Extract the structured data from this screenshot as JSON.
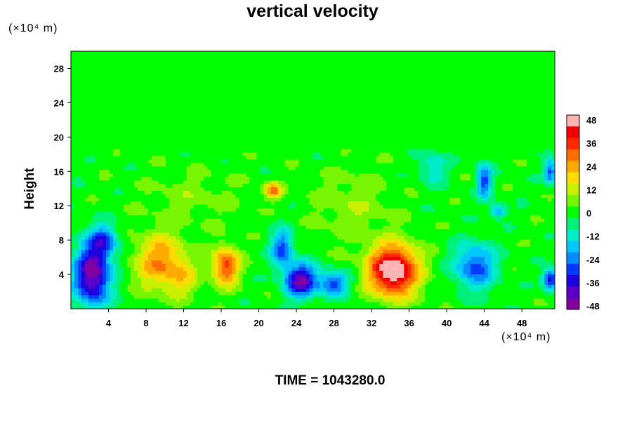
{
  "chart_data": {
    "type": "heatmap",
    "title": "vertical velocity",
    "ylabel": "Height",
    "y_unit": "(×10⁴ m)",
    "x_unit": "(×10⁴ m)",
    "xlim": [
      0,
      51.5
    ],
    "ylim": [
      0,
      30
    ],
    "x_ticks": [
      "4",
      "8",
      "12",
      "16",
      "20",
      "24",
      "28",
      "32",
      "36",
      "40",
      "44",
      "48"
    ],
    "y_ticks": [
      "4",
      "8",
      "12",
      "16",
      "20",
      "24",
      "28"
    ],
    "colorbar": {
      "range": [
        -48,
        48
      ],
      "tick_labels": [
        "48",
        "36",
        "24",
        "12",
        "0",
        "-12",
        "-24",
        "-36",
        "-48"
      ]
    },
    "features": [
      {
        "x": 2.3,
        "y": 4.0,
        "sx": 1.9,
        "sy": 3.6,
        "value": -50
      },
      {
        "x": 3.5,
        "y": 8.0,
        "sx": 1.5,
        "sy": 1.8,
        "value": -25
      },
      {
        "x": 9.5,
        "y": 5.5,
        "sx": 2.6,
        "sy": 3.2,
        "value": 27
      },
      {
        "x": 12.0,
        "y": 3.5,
        "sx": 1.6,
        "sy": 2.2,
        "value": 12
      },
      {
        "x": 16.5,
        "y": 5.0,
        "sx": 1.4,
        "sy": 2.2,
        "value": 36
      },
      {
        "x": 21.5,
        "y": 13.8,
        "sx": 0.9,
        "sy": 0.9,
        "value": 30
      },
      {
        "x": 22.5,
        "y": 7.0,
        "sx": 1.2,
        "sy": 2.2,
        "value": -30
      },
      {
        "x": 24.5,
        "y": 3.3,
        "sx": 1.7,
        "sy": 1.9,
        "value": -46
      },
      {
        "x": 28.0,
        "y": 3.0,
        "sx": 1.6,
        "sy": 1.4,
        "value": -30
      },
      {
        "x": 34.3,
        "y": 4.5,
        "sx": 2.6,
        "sy": 2.9,
        "value": 56
      },
      {
        "x": 43.0,
        "y": 5.0,
        "sx": 2.2,
        "sy": 2.6,
        "value": -30
      },
      {
        "x": 44.0,
        "y": 15.0,
        "sx": 0.8,
        "sy": 2.0,
        "value": -30
      },
      {
        "x": 45.5,
        "y": 11.5,
        "sx": 0.8,
        "sy": 0.8,
        "value": -25
      },
      {
        "x": 51.0,
        "y": 16.0,
        "sx": 0.7,
        "sy": 1.4,
        "value": -30
      },
      {
        "x": 51.0,
        "y": 3.5,
        "sx": 0.8,
        "sy": 1.2,
        "value": -40
      },
      {
        "x": 38.5,
        "y": 16.5,
        "sx": 1.5,
        "sy": 2.0,
        "value": -15
      },
      {
        "x": 30.0,
        "y": 12.0,
        "sx": 4.0,
        "sy": 4.0,
        "value": 8
      },
      {
        "x": 13.0,
        "y": 13.0,
        "sx": 5.0,
        "sy": 3.0,
        "value": 6
      }
    ]
  },
  "time_label": "TIME = 1043280.0"
}
